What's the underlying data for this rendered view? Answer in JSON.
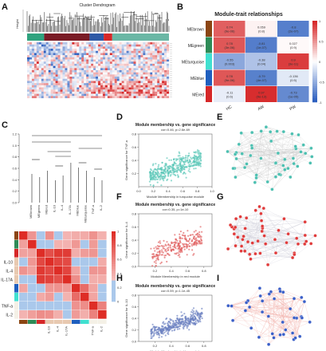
{
  "panels": {
    "A": "A",
    "B": "B",
    "C": "C",
    "D": "D",
    "E": "E",
    "F": "F",
    "G": "G",
    "H": "H",
    "I": "I"
  },
  "panel_a": {
    "title": "Cluster Dendrogram",
    "height_label": "Height",
    "module_bar_colors": [
      "#2fa37e",
      "#7a1c26",
      "#2f5aa6",
      "#d62728",
      "#6ab7a5"
    ],
    "module_bar_weights": [
      0.12,
      0.32,
      0.1,
      0.06,
      0.4
    ]
  },
  "panel_b": {
    "title": "Module-trait relationships",
    "rows": [
      "MEbrown",
      "MEgreen",
      "MEturquoise",
      "MEblue",
      "MEred"
    ],
    "row_colors": [
      "#8b4513",
      "#2e8b57",
      "#40e0d0",
      "#1f5fbf",
      "#d62728"
    ],
    "cols": [
      "HC",
      "AW",
      "PW"
    ],
    "cells": [
      [
        {
          "r": "0.74",
          "p": "(9e-06)",
          "v": 0.74
        },
        {
          "r": "0.059",
          "p": "(0.8)",
          "v": 0.06
        },
        {
          "r": "-0.8",
          "p": "(2e-07)",
          "v": -0.8
        }
      ],
      [
        {
          "r": "0.78",
          "p": "(3e-06)",
          "v": 0.78
        },
        {
          "r": "-0.81",
          "p": "(1e-07)",
          "v": -0.81
        },
        {
          "r": "0.027",
          "p": "(0.9)",
          "v": 0.03
        }
      ],
      [
        {
          "r": "-0.55",
          "p": "(0.003)",
          "v": -0.55
        },
        {
          "r": "-0.38",
          "p": "(0.04)",
          "v": -0.38
        },
        {
          "r": "0.9",
          "p": "(3e-11)",
          "v": 0.9
        }
      ],
      [
        {
          "r": "0.78",
          "p": "(9e-06)",
          "v": 0.78
        },
        {
          "r": "-0.79",
          "p": "(4e-07)",
          "v": -0.79
        },
        {
          "r": "-0.136",
          "p": "(0.5)",
          "v": -0.14
        }
      ],
      [
        {
          "r": "-0.11",
          "p": "(0.6)",
          "v": -0.11
        },
        {
          "r": "0.97",
          "p": "(9e-13)",
          "v": 0.97
        },
        {
          "r": "-0.73",
          "p": "(1e-05)",
          "v": -0.73
        }
      ]
    ],
    "scale_ticks": [
      "1",
      "0.5",
      "0",
      "-0.5",
      "-1"
    ]
  },
  "panel_c": {
    "leaves": [
      "MEbrown",
      "MEgreen",
      "MEred",
      "IL-10",
      "IL-4",
      "IL-17A",
      "MEblue",
      "MEturquoise",
      "TNF-a",
      "IL-2"
    ],
    "y_ticks": [
      "0.0",
      "0.2",
      "0.4",
      "0.6",
      "0.8",
      "1.0",
      "1.2"
    ],
    "heat_rows": [
      "IL-10",
      "IL-4",
      "IL-17A",
      "TNF-a",
      "IL-2"
    ],
    "heat_cols": [
      "IL-10",
      "IL-4",
      "IL-17A",
      "TNF-a",
      "IL-2"
    ],
    "scale_ticks": [
      "1",
      "0.8",
      "0.6",
      "0.4",
      "0.2",
      "0"
    ]
  },
  "scatter_d": {
    "title": "Module membership vs. gene significance",
    "stats": "cor=0.46, p=2.6e-69",
    "xlabel": "Module Membership in turquoise module",
    "ylabel": "Gene significance for TNF-a",
    "color": "#5cc8b8",
    "n": 420,
    "cor": 0.46,
    "xlim": [
      0,
      1.0
    ],
    "ylim": [
      0,
      0.8
    ],
    "x_ticks": [
      "0.0",
      "0.2",
      "0.4",
      "0.6",
      "0.8",
      "1.0"
    ],
    "y_ticks": [
      "0.2",
      "0.4",
      "0.6",
      "0.8"
    ]
  },
  "scatter_f": {
    "title": "Module membership vs. gene significance",
    "stats": "cor=0.35, p=1e-10",
    "xlabel": "Module Membership in red module",
    "ylabel": "Gene significance for IL-4",
    "color": "#e06060",
    "n": 260,
    "cor": 0.35,
    "xlim": [
      0,
      0.9
    ],
    "ylim": [
      0,
      0.8
    ],
    "x_ticks": [
      "0.2",
      "0.4",
      "0.6",
      "0.8"
    ],
    "y_ticks": [
      "0.0",
      "0.2",
      "0.4",
      "0.6",
      "0.8"
    ]
  },
  "scatter_h": {
    "title": "Module membership vs. gene significance",
    "stats": "cor=0.59, p=1.1e-45",
    "xlabel": "Module Membership in blue module",
    "ylabel": "Gene significance for IL-10",
    "color": "#6a7fc0",
    "n": 360,
    "cor": 0.59,
    "xlim": [
      0,
      0.9
    ],
    "ylim": [
      0,
      0.8
    ],
    "x_ticks": [
      "0.2",
      "0.4",
      "0.6",
      "0.8"
    ],
    "y_ticks": [
      "0.0",
      "0.2",
      "0.4",
      "0.6",
      "0.8"
    ]
  },
  "networks": {
    "E": {
      "node_color": "#4bbfb0",
      "edge_color": "#c8c8c8",
      "nodes": 52
    },
    "G": {
      "node_color": "#e03a3a",
      "edge_color": "#c9c9d6",
      "nodes": 52
    },
    "I": {
      "node_color": "#3a5fc8",
      "edge_color": "#f0a8a0",
      "nodes": 40
    }
  }
}
